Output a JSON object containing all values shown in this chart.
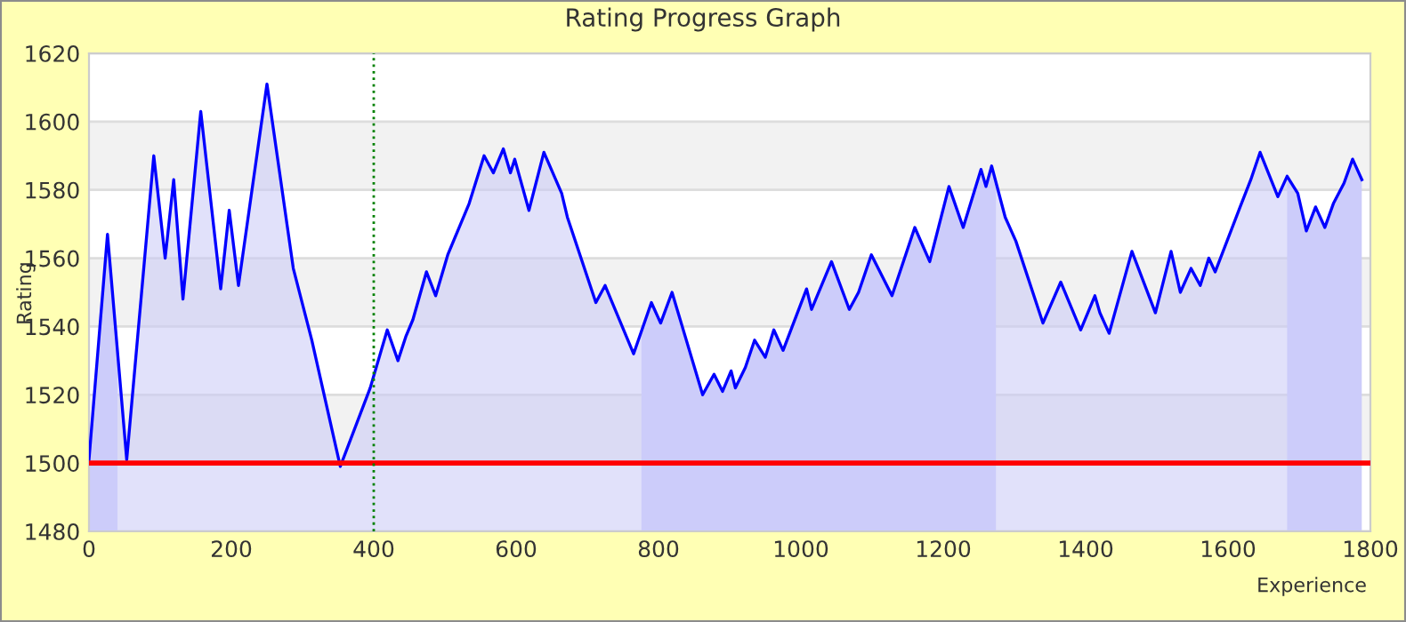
{
  "chart_data": {
    "type": "area",
    "title": "Rating Progress Graph",
    "xlabel": "Experience",
    "ylabel": "Rating",
    "xlim": [
      0,
      1800
    ],
    "xticks": [
      0,
      200,
      400,
      600,
      800,
      1000,
      1200,
      1400,
      1600,
      1800
    ],
    "ylim": [
      1480,
      1620
    ],
    "yticks": [
      1480,
      1500,
      1520,
      1540,
      1560,
      1580,
      1600,
      1620
    ],
    "grid": "y",
    "legend": false,
    "series": [
      {
        "color": "#0000ff",
        "x": [
          0,
          26,
          53,
          91,
          107,
          119,
          132,
          157,
          185,
          197,
          210,
          250,
          287,
          313,
          353,
          395,
          419,
          434,
          445,
          455,
          474,
          487,
          504,
          534,
          555,
          568,
          582,
          592,
          598,
          618,
          639,
          664,
          672,
          712,
          725,
          765,
          790,
          803,
          819,
          862,
          878,
          890,
          902,
          908,
          922,
          935,
          950,
          962,
          975,
          1008,
          1015,
          1043,
          1068,
          1081,
          1099,
          1128,
          1160,
          1181,
          1208,
          1228,
          1253,
          1260,
          1268,
          1287,
          1302,
          1340,
          1365,
          1393,
          1413,
          1420,
          1433,
          1465,
          1498,
          1520,
          1533,
          1548,
          1561,
          1573,
          1582,
          1617,
          1632,
          1645,
          1670,
          1683,
          1698,
          1710,
          1723,
          1736,
          1748,
          1763,
          1775,
          1788
        ],
        "values": [
          1501,
          1567,
          1501,
          1590,
          1560,
          1583,
          1548,
          1603,
          1551,
          1574,
          1552,
          1611,
          1557,
          1536,
          1499,
          1522,
          1539,
          1530,
          1537,
          1542,
          1556,
          1549,
          1561,
          1576,
          1590,
          1585,
          1592,
          1585,
          1589,
          1574,
          1591,
          1579,
          1572,
          1547,
          1552,
          1532,
          1547,
          1541,
          1550,
          1520,
          1526,
          1521,
          1527,
          1522,
          1528,
          1536,
          1531,
          1539,
          1533,
          1551,
          1545,
          1559,
          1545,
          1550,
          1561,
          1549,
          1569,
          1559,
          1581,
          1569,
          1586,
          1581,
          1587,
          1572,
          1565,
          1541,
          1553,
          1539,
          1549,
          1544,
          1538,
          1562,
          1544,
          1562,
          1550,
          1557,
          1552,
          1560,
          1556,
          1575,
          1583,
          1591,
          1578,
          1584,
          1579,
          1568,
          1575,
          1569,
          1576,
          1582,
          1589,
          1583
        ]
      }
    ],
    "ref_lines": [
      {
        "axis": "y",
        "value": 1500,
        "color": "#ff0000",
        "line_style": "solid"
      },
      {
        "axis": "x",
        "value": 400,
        "color": "#008000",
        "line_style": "dotted"
      }
    ],
    "bands": [
      {
        "axis": "x",
        "from": 0,
        "to": 40,
        "color": "#d1d1ff"
      },
      {
        "axis": "x",
        "from": 776,
        "to": 1274,
        "color": "#d1d1ff"
      },
      {
        "axis": "x",
        "from": 1683,
        "to": 1788,
        "color": "#d1d1ff"
      }
    ]
  }
}
